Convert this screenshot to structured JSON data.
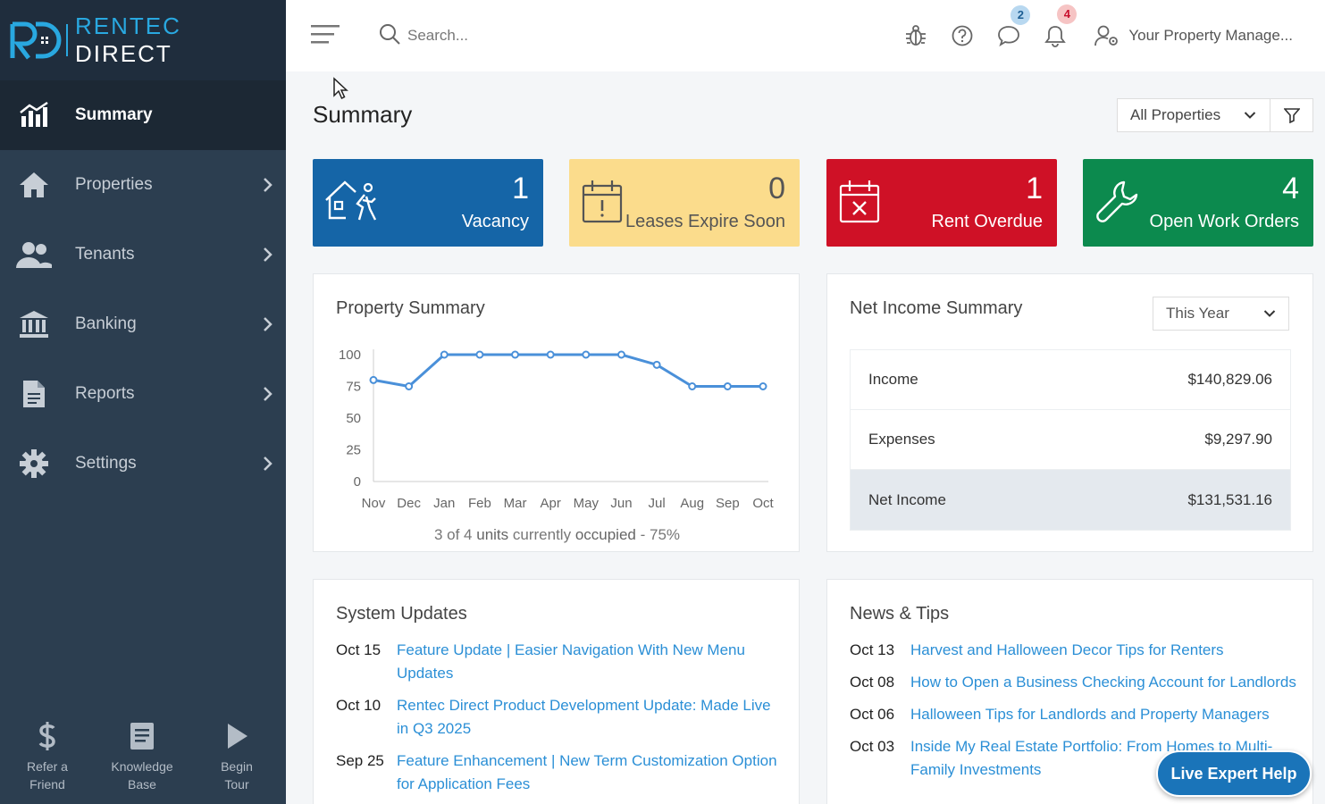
{
  "brand": {
    "name_a": "RENTEC",
    "name_b": "DIRECT",
    "mark": "RD"
  },
  "sidebar": {
    "items": [
      {
        "label": "Summary",
        "icon": "chart-bars-icon"
      },
      {
        "label": "Properties",
        "icon": "house-icon"
      },
      {
        "label": "Tenants",
        "icon": "users-icon"
      },
      {
        "label": "Banking",
        "icon": "bank-icon"
      },
      {
        "label": "Reports",
        "icon": "document-icon"
      },
      {
        "label": "Settings",
        "icon": "gear-icon"
      }
    ],
    "footer": [
      {
        "line1": "Refer a",
        "line2": "Friend",
        "icon": "dollar-icon"
      },
      {
        "line1": "Knowledge",
        "line2": "Base",
        "icon": "book-icon"
      },
      {
        "line1": "Begin",
        "line2": "Tour",
        "icon": "play-icon"
      }
    ]
  },
  "topbar": {
    "search_placeholder": "Search...",
    "messages_count": "2",
    "notifications_count": "4",
    "user_label": "Your Property Manage..."
  },
  "page": {
    "title": "Summary",
    "property_filter": "All Properties"
  },
  "tiles": [
    {
      "count": "1",
      "label": "Vacancy"
    },
    {
      "count": "0",
      "label": "Leases Expire Soon"
    },
    {
      "count": "1",
      "label": "Rent Overdue"
    },
    {
      "count": "4",
      "label": "Open Work Orders"
    }
  ],
  "property_summary": {
    "title": "Property Summary",
    "occ_a": "3 of 4",
    "occ_b": "units",
    "occ_c": "currently",
    "occ_d": "occupied",
    "occ_e": "- 75%"
  },
  "chart_data": {
    "type": "line",
    "categories": [
      "Nov",
      "Dec",
      "Jan",
      "Feb",
      "Mar",
      "Apr",
      "May",
      "Jun",
      "Jul",
      "Aug",
      "Sep",
      "Oct"
    ],
    "values": [
      80,
      75,
      100,
      100,
      100,
      100,
      100,
      100,
      92,
      75,
      75,
      75
    ],
    "ylim": [
      0,
      100
    ],
    "yticks": [
      "0",
      "25",
      "50",
      "75",
      "100"
    ],
    "color": "#4a90d9",
    "grid": false
  },
  "net_income": {
    "title": "Net Income Summary",
    "period": "This Year",
    "rows": [
      {
        "label": "Income",
        "amount": "$140,829.06"
      },
      {
        "label": "Expenses",
        "amount": "$9,297.90"
      },
      {
        "label": "Net Income",
        "amount": "$131,531.16"
      }
    ]
  },
  "system_updates": {
    "title": "System Updates",
    "items": [
      {
        "date": "Oct 15",
        "text": "Feature Update | Easier Navigation With New Menu Updates"
      },
      {
        "date": "Oct 10",
        "text": "Rentec Direct Product Development Update: Made Live in Q3 2025"
      },
      {
        "date": "Sep 25",
        "text": "Feature Enhancement | New Term Customization Option for Application Fees"
      }
    ]
  },
  "news": {
    "title": "News & Tips",
    "items": [
      {
        "date": "Oct 13",
        "text": "Harvest and Halloween Decor Tips for Renters"
      },
      {
        "date": "Oct 08",
        "text": "How to Open a Business Checking Account for Landlords"
      },
      {
        "date": "Oct 06",
        "text": "Halloween Tips for Landlords and Property Managers"
      },
      {
        "date": "Oct 03",
        "text": "Inside My Real Estate Portfolio: From Homes to Multi-Family Investments"
      }
    ]
  },
  "help_button": "Live Expert Help"
}
